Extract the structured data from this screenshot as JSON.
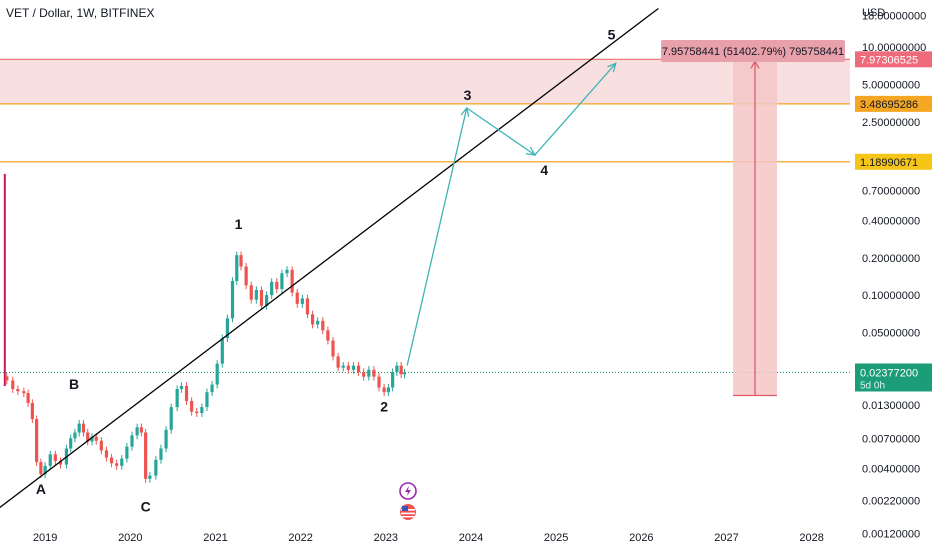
{
  "header": {
    "title": "VET / Dollar, 1W, BITFINEX"
  },
  "icons": {
    "flash": "lightning-icon",
    "flag": "us-flag-icon"
  },
  "colors": {
    "up": "#26a69a",
    "down": "#ef5350",
    "spike": "#c2185b",
    "trendline": "#000000",
    "path": "#3fb4b4",
    "zone": "#f7d6d6",
    "resistance": "#ef7b7b",
    "support": "#f5a623",
    "current": "#1b9e77"
  },
  "chart_data": {
    "type": "candlestick",
    "title": "VET / Dollar, 1W, BITFINEX",
    "y_scale": "log",
    "y_unit_label": "USD",
    "xlim": [
      2018.47,
      2028.45
    ],
    "ylim": [
      0.00088,
      24
    ],
    "x_ticks": [
      "2019",
      "2020",
      "2021",
      "2022",
      "2023",
      "2024",
      "2025",
      "2026",
      "2027",
      "2028"
    ],
    "y_ticks": [
      "18.00000000",
      "10.00000000",
      "5.00000000",
      "2.50000000",
      "0.70000000",
      "0.40000000",
      "0.20000000",
      "0.10000000",
      "0.05000000",
      "0.01300000",
      "0.00700000",
      "0.00400000",
      "0.00220000",
      "0.00120000"
    ],
    "price_levels": [
      {
        "label": "7.97306525",
        "value": 7.97306525,
        "color": "#ef7b7b"
      },
      {
        "label": "3.48695286",
        "value": 3.48695286,
        "color": "#f5a623"
      },
      {
        "label": "1.18990671",
        "value": 1.18990671,
        "color": "#f5a623"
      }
    ],
    "current_price": {
      "label": "0.02377200",
      "countdown": "5d 0h",
      "value": 0.023772
    },
    "measure": {
      "label": "7.95758441 (51402.79%) 795758441",
      "from": 0.0155,
      "to": 7.97
    },
    "wave_labels": [
      {
        "text": "A",
        "x": 2018.95,
        "y": 0.0025
      },
      {
        "text": "B",
        "x": 2019.34,
        "y": 0.0175
      },
      {
        "text": "C",
        "x": 2020.18,
        "y": 0.0018
      },
      {
        "text": "1",
        "x": 2021.27,
        "y": 0.34
      },
      {
        "text": "2",
        "x": 2022.98,
        "y": 0.0115
      },
      {
        "text": "3",
        "x": 2023.96,
        "y": 3.75
      },
      {
        "text": "4",
        "x": 2024.86,
        "y": 0.93
      },
      {
        "text": "5",
        "x": 2025.65,
        "y": 11.5
      }
    ],
    "trendline": [
      [
        2018.45,
        0.0019
      ],
      [
        2026.2,
        20.5
      ]
    ],
    "projection_path": [
      [
        2023.25,
        0.027
      ],
      [
        2023.95,
        3.23
      ],
      [
        2024.75,
        1.35
      ],
      [
        2025.7,
        7.4
      ]
    ],
    "spike": {
      "x": 2018.55,
      "high": 0.95,
      "low": 0.0185
    },
    "series": [
      {
        "x": 2018.55,
        "close": 0.0205
      },
      {
        "x": 2018.62,
        "close": 0.0175
      },
      {
        "x": 2018.68,
        "close": 0.0168
      },
      {
        "x": 2018.75,
        "close": 0.0162
      },
      {
        "x": 2018.8,
        "close": 0.0135
      },
      {
        "x": 2018.85,
        "close": 0.01
      },
      {
        "x": 2018.9,
        "close": 0.0045
      },
      {
        "x": 2018.95,
        "close": 0.0036
      },
      {
        "x": 2019.0,
        "close": 0.0042
      },
      {
        "x": 2019.06,
        "close": 0.0052
      },
      {
        "x": 2019.12,
        "close": 0.0046
      },
      {
        "x": 2019.18,
        "close": 0.0043
      },
      {
        "x": 2019.25,
        "close": 0.0058
      },
      {
        "x": 2019.3,
        "close": 0.007
      },
      {
        "x": 2019.35,
        "close": 0.0078
      },
      {
        "x": 2019.4,
        "close": 0.0092
      },
      {
        "x": 2019.45,
        "close": 0.0078
      },
      {
        "x": 2019.5,
        "close": 0.0066
      },
      {
        "x": 2019.55,
        "close": 0.0072
      },
      {
        "x": 2019.6,
        "close": 0.0067
      },
      {
        "x": 2019.66,
        "close": 0.0056
      },
      {
        "x": 2019.72,
        "close": 0.0049
      },
      {
        "x": 2019.78,
        "close": 0.0044
      },
      {
        "x": 2019.84,
        "close": 0.0042
      },
      {
        "x": 2019.9,
        "close": 0.0048
      },
      {
        "x": 2019.96,
        "close": 0.006
      },
      {
        "x": 2020.02,
        "close": 0.0074
      },
      {
        "x": 2020.08,
        "close": 0.0086
      },
      {
        "x": 2020.13,
        "close": 0.0078
      },
      {
        "x": 2020.18,
        "close": 0.0033
      },
      {
        "x": 2020.23,
        "close": 0.0035
      },
      {
        "x": 2020.3,
        "close": 0.0047
      },
      {
        "x": 2020.36,
        "close": 0.0058
      },
      {
        "x": 2020.42,
        "close": 0.0082
      },
      {
        "x": 2020.48,
        "close": 0.0125
      },
      {
        "x": 2020.55,
        "close": 0.0175
      },
      {
        "x": 2020.6,
        "close": 0.0185
      },
      {
        "x": 2020.66,
        "close": 0.014
      },
      {
        "x": 2020.72,
        "close": 0.0115
      },
      {
        "x": 2020.78,
        "close": 0.0112
      },
      {
        "x": 2020.84,
        "close": 0.0125
      },
      {
        "x": 2020.9,
        "close": 0.0165
      },
      {
        "x": 2020.96,
        "close": 0.019
      },
      {
        "x": 2021.02,
        "close": 0.028
      },
      {
        "x": 2021.08,
        "close": 0.045
      },
      {
        "x": 2021.14,
        "close": 0.065
      },
      {
        "x": 2021.2,
        "close": 0.13
      },
      {
        "x": 2021.25,
        "close": 0.21
      },
      {
        "x": 2021.3,
        "close": 0.17
      },
      {
        "x": 2021.36,
        "close": 0.12
      },
      {
        "x": 2021.42,
        "close": 0.092
      },
      {
        "x": 2021.48,
        "close": 0.11
      },
      {
        "x": 2021.54,
        "close": 0.082
      },
      {
        "x": 2021.6,
        "close": 0.1
      },
      {
        "x": 2021.66,
        "close": 0.128
      },
      {
        "x": 2021.72,
        "close": 0.112
      },
      {
        "x": 2021.78,
        "close": 0.15
      },
      {
        "x": 2021.84,
        "close": 0.16
      },
      {
        "x": 2021.9,
        "close": 0.105
      },
      {
        "x": 2021.96,
        "close": 0.085
      },
      {
        "x": 2022.02,
        "close": 0.094
      },
      {
        "x": 2022.08,
        "close": 0.07
      },
      {
        "x": 2022.14,
        "close": 0.058
      },
      {
        "x": 2022.2,
        "close": 0.062
      },
      {
        "x": 2022.26,
        "close": 0.052
      },
      {
        "x": 2022.32,
        "close": 0.043
      },
      {
        "x": 2022.38,
        "close": 0.032
      },
      {
        "x": 2022.44,
        "close": 0.026
      },
      {
        "x": 2022.5,
        "close": 0.027
      },
      {
        "x": 2022.56,
        "close": 0.025
      },
      {
        "x": 2022.62,
        "close": 0.027
      },
      {
        "x": 2022.68,
        "close": 0.024
      },
      {
        "x": 2022.74,
        "close": 0.022
      },
      {
        "x": 2022.8,
        "close": 0.025
      },
      {
        "x": 2022.86,
        "close": 0.022
      },
      {
        "x": 2022.92,
        "close": 0.018
      },
      {
        "x": 2022.98,
        "close": 0.0165
      },
      {
        "x": 2023.03,
        "close": 0.018
      },
      {
        "x": 2023.08,
        "close": 0.024
      },
      {
        "x": 2023.13,
        "close": 0.027
      },
      {
        "x": 2023.18,
        "close": 0.023
      },
      {
        "x": 2023.22,
        "close": 0.0238
      }
    ]
  }
}
